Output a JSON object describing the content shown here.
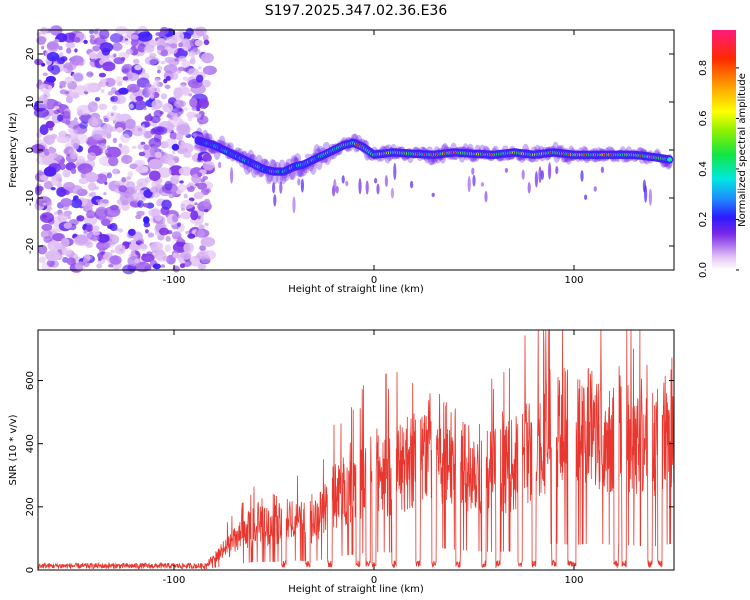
{
  "chart_data": [
    {
      "type": "heatmap",
      "title": "S197.2025.347.02.36.E36",
      "xlabel": "Height of straight line (km)",
      "ylabel": "Frequency (Hz)",
      "xlim": [
        -168,
        150
      ],
      "ylim": [
        -25,
        25
      ],
      "xticks": [
        -100,
        0,
        100
      ],
      "yticks": [
        -20,
        -10,
        0,
        10,
        20
      ],
      "colorbar": {
        "label": "Normalized spectral amplitude",
        "range": [
          0,
          0.95
        ],
        "ticks": [
          0,
          0.2,
          0.4,
          0.6,
          0.8
        ],
        "tick_labels": [
          "0.0",
          "0.2",
          "0.4",
          "0.6",
          "0.8"
        ]
      },
      "noise_region_x": [
        -168,
        -82
      ],
      "ridge": {
        "x": [
          -88,
          -80,
          -75,
          -70,
          -65,
          -60,
          -55,
          -50,
          -45,
          -40,
          -35,
          -30,
          -25,
          -20,
          -15,
          -10,
          -5,
          0,
          10,
          20,
          30,
          40,
          50,
          60,
          70,
          80,
          90,
          100,
          110,
          120,
          130,
          140,
          148
        ],
        "y": [
          2,
          1,
          0,
          -1,
          -2,
          -3,
          -4,
          -4.5,
          -4.5,
          -3.5,
          -3,
          -2,
          -1,
          0,
          1,
          1.5,
          0.5,
          -1,
          -0.5,
          -0.8,
          -1,
          -0.5,
          -0.8,
          -1,
          -0.5,
          -1,
          -0.5,
          -1,
          -1,
          -1,
          -1,
          -1.5,
          -2
        ],
        "amplitude": [
          0.3,
          0.45,
          0.5,
          0.45,
          0.5,
          0.45,
          0.5,
          0.55,
          0.55,
          0.5,
          0.5,
          0.55,
          0.6,
          0.6,
          0.7,
          0.85,
          0.8,
          0.85,
          0.85,
          0.9,
          0.9,
          0.85,
          0.9,
          0.9,
          0.85,
          0.85,
          0.85,
          0.9,
          0.85,
          0.85,
          0.8,
          0.8,
          0.75
        ]
      }
    },
    {
      "type": "line",
      "xlabel": "Height of straight line (km)",
      "ylabel": "SNR (10 * v/v)",
      "xlim": [
        -168,
        150
      ],
      "ylim": [
        0,
        760
      ],
      "xticks": [
        -100,
        0,
        100
      ],
      "yticks": [
        0,
        200,
        400,
        600
      ],
      "series": [
        {
          "name": "SNR",
          "color": "#e8372e",
          "trend_x": [
            -168,
            -85,
            -78,
            -70,
            -60,
            -50,
            -40,
            -30,
            -20,
            -10,
            0,
            10,
            20,
            30,
            40,
            50,
            60,
            70,
            80,
            90,
            100,
            110,
            120,
            130,
            140,
            150
          ],
          "trend_y": [
            10,
            12,
            60,
            110,
            170,
            170,
            200,
            180,
            280,
            330,
            380,
            370,
            430,
            480,
            430,
            400,
            380,
            400,
            480,
            560,
            530,
            560,
            530,
            520,
            500,
            560
          ],
          "dropout_x": [
            -45,
            -33,
            -22,
            -8,
            -3,
            0,
            10,
            22,
            30,
            42,
            55,
            62,
            73,
            80,
            90,
            98,
            100,
            121,
            125,
            138,
            143
          ]
        }
      ]
    }
  ]
}
